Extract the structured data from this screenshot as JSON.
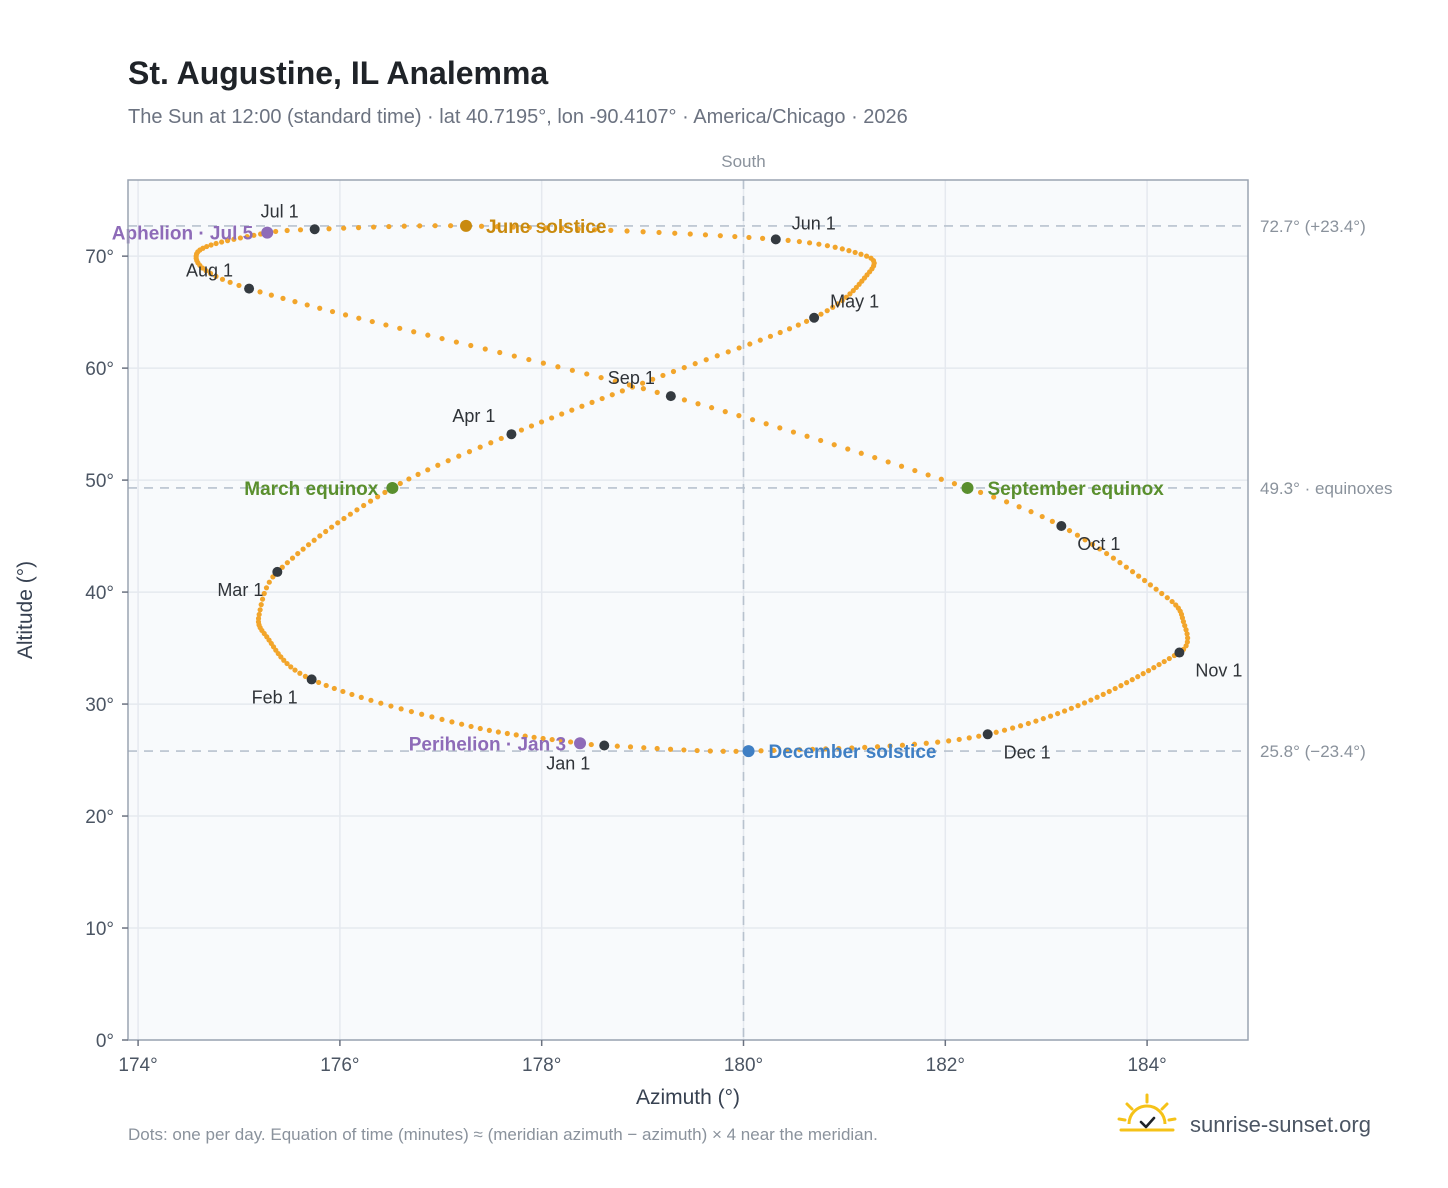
{
  "title": "St. Augustine, IL Analemma",
  "subtitle": "The Sun at 12:00 (standard time) · lat 40.7195°, lon -90.4107° · America/Chicago · 2026",
  "footnote": "Dots: one per day. Equation of time (minutes) ≈ (meridian azimuth − azimuth) × 4 near the meridian.",
  "brand": {
    "name": "sunrise-sunset.org",
    "icon": "sun-check-icon"
  },
  "colors": {
    "curve": "#f2a52b",
    "month_dot": "#343a40",
    "equinox": "#5a8f2e",
    "june_solstice": "#c98a0e",
    "december_solstice": "#3f7fc4",
    "apsides": "#8e6bb8",
    "plot_bg": "#f8fafc",
    "grid": "#e5e9ef",
    "ref_line": "#b8c2ce"
  },
  "chart_data": {
    "type": "scatter",
    "title": "St. Augustine, IL Analemma",
    "xlabel": "Azimuth (°)",
    "ylabel": "Altitude (°)",
    "xlim": [
      173.9,
      185.0
    ],
    "ylim": [
      0,
      76.8
    ],
    "grid": true,
    "x_ticks": [
      174,
      176,
      178,
      180,
      182,
      184
    ],
    "y_ticks": [
      0,
      10,
      20,
      30,
      40,
      50,
      60,
      70
    ],
    "x_tick_labels": [
      "174°",
      "176°",
      "178°",
      "180°",
      "182°",
      "184°"
    ],
    "y_tick_labels": [
      "0°",
      "10°",
      "20°",
      "30°",
      "40°",
      "50°",
      "60°",
      "70°"
    ],
    "meridian": {
      "azimuth": 180,
      "label": "South"
    },
    "reference_lines": [
      {
        "altitude": 72.7,
        "label": "72.7° (+23.4°)"
      },
      {
        "altitude": 49.3,
        "label": "49.3° · equinoxes"
      },
      {
        "altitude": 25.8,
        "label": "25.8° (−23.4°)"
      }
    ],
    "analemma_path": [
      {
        "day": 1,
        "azimuth": 178.62,
        "altitude": 26.3
      },
      {
        "day": 3,
        "azimuth": 178.38,
        "altitude": 26.5
      },
      {
        "day": 15,
        "azimuth": 177.3,
        "altitude": 28.0
      },
      {
        "day": 32,
        "azimuth": 175.72,
        "altitude": 32.2
      },
      {
        "day": 46,
        "azimuth": 175.25,
        "altitude": 36.3
      },
      {
        "day": 52,
        "azimuth": 175.2,
        "altitude": 38.0
      },
      {
        "day": 60,
        "azimuth": 175.38,
        "altitude": 41.8
      },
      {
        "day": 79,
        "azimuth": 176.52,
        "altitude": 49.3
      },
      {
        "day": 91,
        "azimuth": 177.7,
        "altitude": 54.1
      },
      {
        "day": 105,
        "azimuth": 179.1,
        "altitude": 59.0
      },
      {
        "day": 121,
        "azimuth": 180.7,
        "altitude": 64.5
      },
      {
        "day": 135,
        "azimuth": 181.25,
        "altitude": 68.6
      },
      {
        "day": 141,
        "azimuth": 181.22,
        "altitude": 70.0
      },
      {
        "day": 152,
        "azimuth": 180.32,
        "altitude": 71.5
      },
      {
        "day": 172,
        "azimuth": 177.25,
        "altitude": 72.7
      },
      {
        "day": 182,
        "azimuth": 175.75,
        "altitude": 72.4
      },
      {
        "day": 186,
        "azimuth": 175.28,
        "altitude": 72.1
      },
      {
        "day": 200,
        "azimuth": 174.58,
        "altitude": 70.2
      },
      {
        "day": 213,
        "azimuth": 175.1,
        "altitude": 67.1
      },
      {
        "day": 244,
        "azimuth": 179.28,
        "altitude": 57.5
      },
      {
        "day": 266,
        "azimuth": 182.22,
        "altitude": 49.3
      },
      {
        "day": 274,
        "azimuth": 183.15,
        "altitude": 45.9
      },
      {
        "day": 290,
        "azimuth": 184.2,
        "altitude": 39.5
      },
      {
        "day": 296,
        "azimuth": 184.35,
        "altitude": 37.7
      },
      {
        "day": 305,
        "azimuth": 184.32,
        "altitude": 34.6
      },
      {
        "day": 335,
        "azimuth": 182.42,
        "altitude": 27.3
      },
      {
        "day": 355,
        "azimuth": 180.05,
        "altitude": 25.8
      },
      {
        "day": 366,
        "azimuth": 178.62,
        "altitude": 26.3
      }
    ],
    "month_markers": [
      {
        "label": "Jan 1",
        "azimuth": 178.62,
        "altitude": 26.3,
        "placement": "below-left"
      },
      {
        "label": "Feb 1",
        "azimuth": 175.72,
        "altitude": 32.2,
        "placement": "below-left"
      },
      {
        "label": "Mar 1",
        "azimuth": 175.38,
        "altitude": 41.8,
        "placement": "below-left"
      },
      {
        "label": "Apr 1",
        "azimuth": 177.7,
        "altitude": 54.1,
        "placement": "above-left"
      },
      {
        "label": "May 1",
        "azimuth": 180.7,
        "altitude": 64.5,
        "placement": "above-right"
      },
      {
        "label": "Jun 1",
        "azimuth": 180.32,
        "altitude": 71.5,
        "placement": "above-right"
      },
      {
        "label": "Jul 1",
        "azimuth": 175.75,
        "altitude": 72.4,
        "placement": "above-left"
      },
      {
        "label": "Aug 1",
        "azimuth": 175.1,
        "altitude": 67.1,
        "placement": "above-left"
      },
      {
        "label": "Sep 1",
        "azimuth": 179.28,
        "altitude": 57.5,
        "placement": "above-left"
      },
      {
        "label": "Oct 1",
        "azimuth": 183.15,
        "altitude": 45.9,
        "placement": "below-right"
      },
      {
        "label": "Nov 1",
        "azimuth": 184.32,
        "altitude": 34.6,
        "placement": "below-right"
      },
      {
        "label": "Dec 1",
        "azimuth": 182.42,
        "altitude": 27.3,
        "placement": "below-right"
      }
    ],
    "events": [
      {
        "label": "March equinox",
        "azimuth": 176.52,
        "altitude": 49.3,
        "color": "#5a8f2e",
        "side": "left"
      },
      {
        "label": "June solstice",
        "azimuth": 177.25,
        "altitude": 72.7,
        "color": "#c98a0e",
        "side": "right"
      },
      {
        "label": "September equinox",
        "azimuth": 182.22,
        "altitude": 49.3,
        "color": "#5a8f2e",
        "side": "right"
      },
      {
        "label": "December solstice",
        "azimuth": 180.05,
        "altitude": 25.8,
        "color": "#3f7fc4",
        "side": "right"
      },
      {
        "label": "Perihelion · Jan 3",
        "azimuth": 178.38,
        "altitude": 26.5,
        "color": "#8e6bb8",
        "side": "left"
      },
      {
        "label": "Aphelion · Jul 5",
        "azimuth": 175.28,
        "altitude": 72.1,
        "color": "#8e6bb8",
        "side": "left"
      }
    ]
  }
}
